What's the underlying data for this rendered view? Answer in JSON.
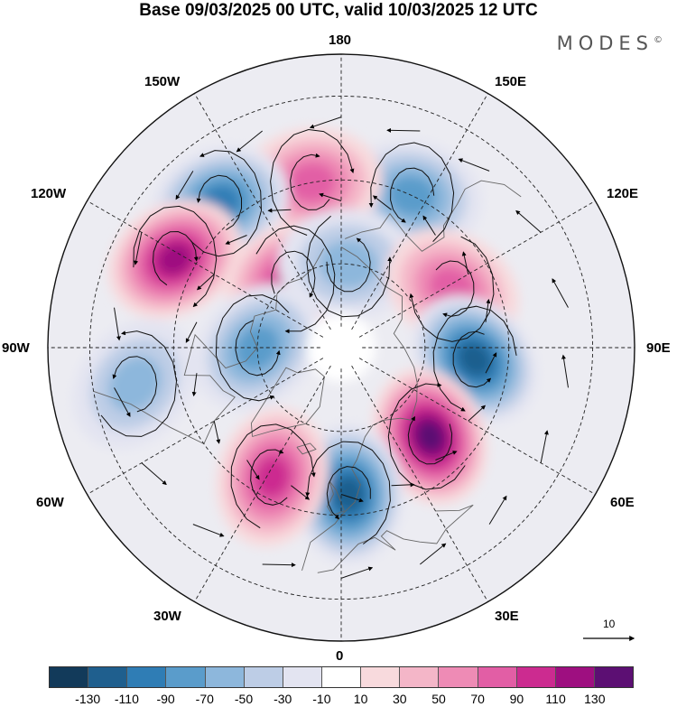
{
  "title": "Base 09/03/2025 00 UTC, valid 10/03/2025 12 UTC",
  "brand": "MODES",
  "brand_mark": "©",
  "longitude_labels": {
    "n180": "180",
    "w150": "150W",
    "e150": "150E",
    "w120": "120W",
    "e120": "120E",
    "w90": "90W",
    "e90": "90E",
    "w60": "60W",
    "e60": "60E",
    "w30": "30W",
    "e30": "30E",
    "s0": "0"
  },
  "reference_vector": {
    "value": "10"
  },
  "colorbar": {
    "colors": [
      "#123a5a",
      "#1f5f8e",
      "#2f7db5",
      "#5a9ccb",
      "#8db7dc",
      "#bdcde6",
      "#e3e4f1",
      "#ffffff",
      "#f8dadd",
      "#f4b6c8",
      "#ee8bb5",
      "#e25ea5",
      "#cc2b90",
      "#9e0f80",
      "#5c0f73"
    ],
    "ticks": [
      "-130",
      "-110",
      "-90",
      "-70",
      "-50",
      "-30",
      "-10",
      "10",
      "30",
      "50",
      "70",
      "90",
      "110",
      "130"
    ]
  },
  "anomaly_centers": [
    {
      "sign": "negative",
      "level": -50,
      "lon": 155,
      "lat": 50
    },
    {
      "sign": "positive",
      "level": 50,
      "lon": -170,
      "lat": 50
    },
    {
      "sign": "negative",
      "level": -70,
      "lon": -140,
      "lat": 45
    },
    {
      "sign": "positive",
      "level": 90,
      "lon": -118,
      "lat": 45
    },
    {
      "sign": "positive",
      "level": 70,
      "lon": -145,
      "lat": 70
    },
    {
      "sign": "negative",
      "level": -30,
      "lon": 175,
      "lat": 70
    },
    {
      "sign": "positive",
      "level": 50,
      "lon": 118,
      "lat": 60
    },
    {
      "sign": "negative",
      "level": -50,
      "lon": -90,
      "lat": 70
    },
    {
      "sign": "negative",
      "level": -90,
      "lon": 85,
      "lat": 58
    },
    {
      "sign": "positive",
      "level": 110,
      "lon": 45,
      "lat": 60
    },
    {
      "sign": "negative",
      "level": -90,
      "lon": 3,
      "lat": 55
    },
    {
      "sign": "positive",
      "level": 70,
      "lon": -28,
      "lat": 55
    },
    {
      "sign": "negative",
      "level": -30,
      "lon": -80,
      "lat": 40
    }
  ]
}
